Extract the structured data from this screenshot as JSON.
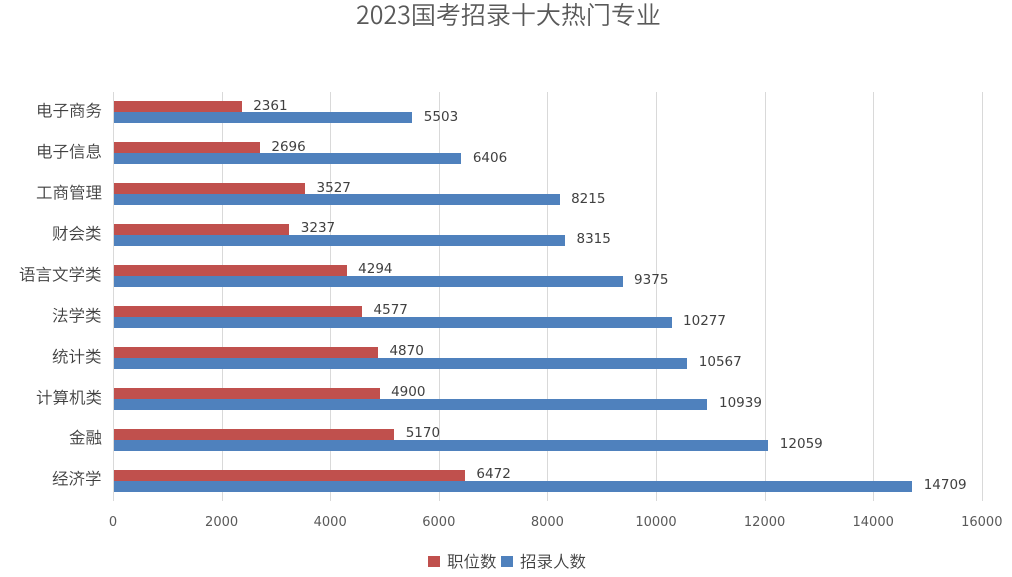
{
  "chart": {
    "title": "2023国考招录十大热门专业",
    "background": "#FFFFFF",
    "chart_data": {
      "type": "bar",
      "orientation": "horizontal",
      "title": "2023国考招录十大热门专业",
      "categories": [
        "电子商务",
        "电子信息",
        "工商管理",
        "财会类",
        "语言文学类",
        "法学类",
        "统计类",
        "计算机类",
        "金融",
        "经济学"
      ],
      "series": [
        {
          "name": "职位数",
          "color": "#C0504D",
          "values": [
            2361,
            2696,
            3527,
            3237,
            4294,
            4577,
            4870,
            4900,
            5170,
            6472
          ]
        },
        {
          "name": "招录人数",
          "color": "#4F81BD",
          "values": [
            5503,
            6406,
            8215,
            8315,
            9375,
            10277,
            10567,
            10939,
            12059,
            14709
          ]
        }
      ],
      "xlabel": "",
      "ylabel": "",
      "xlim": [
        0,
        16000
      ],
      "xticks": [
        0,
        2000,
        4000,
        6000,
        8000,
        10000,
        12000,
        14000,
        16000
      ],
      "grid": true,
      "data_labels": true,
      "legend_position": "bottom",
      "value_order_note": "categories listed top to bottom as displayed"
    },
    "colors": {
      "series_positions": "#C0504D",
      "series_recruits": "#4F81BD",
      "title_text": "#595959",
      "axis_tick_text": "#595959",
      "data_label_text": "#404040",
      "category_label_text": "#3F3F3F",
      "legend_text": "#3F3F3F",
      "gridline": "#D9D9D9"
    }
  }
}
